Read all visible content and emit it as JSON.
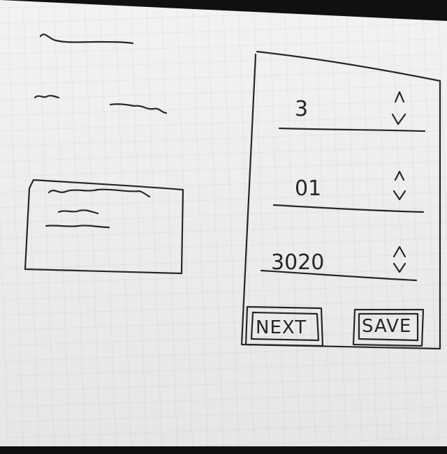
{
  "form": {
    "day": {
      "value": "3"
    },
    "month": {
      "value": "01"
    },
    "year": {
      "value": "3020"
    },
    "next_label": "NEXT",
    "save_label": "SAVE"
  }
}
